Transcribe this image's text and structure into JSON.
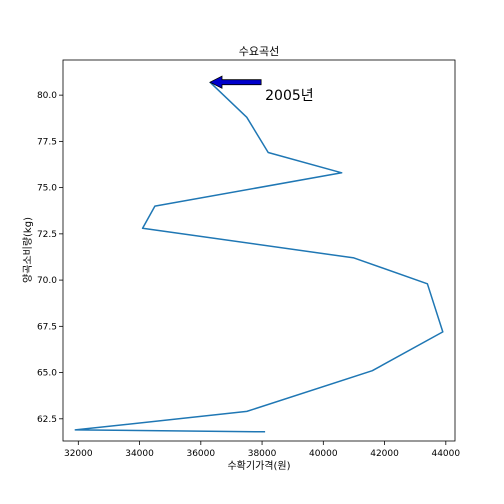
{
  "chart_data": {
    "type": "line",
    "title": "수요곡선",
    "xlabel": "수확기가격(원)",
    "ylabel": "양곡소비량(kg)",
    "xlim": [
      31500,
      44300
    ],
    "ylim": [
      61.3,
      81.9
    ],
    "xticks": [
      32000,
      34000,
      36000,
      38000,
      40000,
      42000,
      44000
    ],
    "yticks": [
      62.5,
      65.0,
      67.5,
      70.0,
      72.5,
      75.0,
      77.5,
      80.0
    ],
    "ytick_labels": [
      "62.5",
      "65.0",
      "67.5",
      "70.0",
      "72.5",
      "75.0",
      "77.5",
      "80.0"
    ],
    "grid": false,
    "series": [
      {
        "color": "#1f77b4",
        "x": [
          36300,
          37500,
          38200,
          40600,
          34500,
          34100,
          41000,
          43400,
          43900,
          41600,
          37500,
          31900,
          38100
        ],
        "y": [
          80.7,
          78.8,
          76.9,
          75.8,
          74.0,
          72.8,
          71.2,
          69.8,
          67.2,
          65.1,
          62.9,
          61.9,
          61.8
        ]
      }
    ],
    "annotation": {
      "text": "2005년",
      "point": [
        36300,
        80.7
      ],
      "text_pos": [
        38100,
        80.0
      ],
      "arrow_color": "#0000cc"
    }
  }
}
